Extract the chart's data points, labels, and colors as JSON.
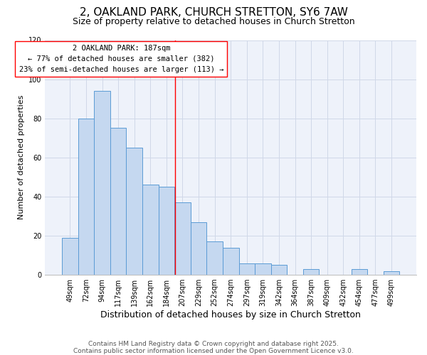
{
  "title": "2, OAKLAND PARK, CHURCH STRETTON, SY6 7AW",
  "subtitle": "Size of property relative to detached houses in Church Stretton",
  "xlabel": "Distribution of detached houses by size in Church Stretton",
  "ylabel": "Number of detached properties",
  "footer_line1": "Contains HM Land Registry data © Crown copyright and database right 2025.",
  "footer_line2": "Contains public sector information licensed under the Open Government Licence v3.0.",
  "categories": [
    "49sqm",
    "72sqm",
    "94sqm",
    "117sqm",
    "139sqm",
    "162sqm",
    "184sqm",
    "207sqm",
    "229sqm",
    "252sqm",
    "274sqm",
    "297sqm",
    "319sqm",
    "342sqm",
    "364sqm",
    "387sqm",
    "409sqm",
    "432sqm",
    "454sqm",
    "477sqm",
    "499sqm"
  ],
  "values": [
    19,
    80,
    94,
    75,
    65,
    46,
    45,
    37,
    27,
    17,
    14,
    6,
    6,
    5,
    0,
    3,
    0,
    0,
    3,
    0,
    2
  ],
  "bar_color": "#c5d8f0",
  "bar_edge_color": "#5b9bd5",
  "ylim": [
    0,
    120
  ],
  "yticks": [
    0,
    20,
    40,
    60,
    80,
    100,
    120
  ],
  "property_label": "2 OAKLAND PARK: 187sqm",
  "annotation_line1": "← 77% of detached houses are smaller (382)",
  "annotation_line2": "23% of semi-detached houses are larger (113) →",
  "vline_x_index": 6.52,
  "grid_color": "#d0d8e8",
  "background_color": "#eef2fa",
  "title_fontsize": 11,
  "subtitle_fontsize": 9,
  "xlabel_fontsize": 9,
  "ylabel_fontsize": 8,
  "tick_fontsize": 7,
  "annotation_fontsize": 7.5,
  "footer_fontsize": 6.5
}
